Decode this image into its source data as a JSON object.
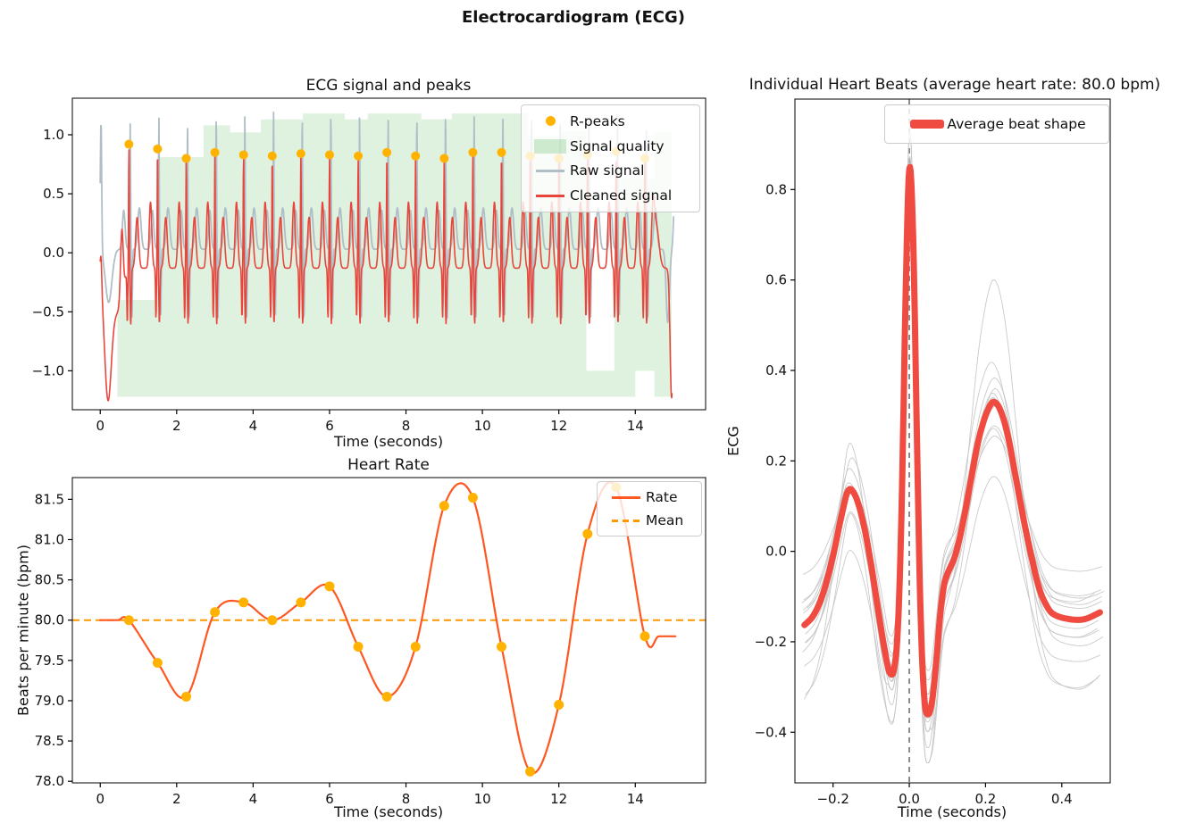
{
  "figure": {
    "title": "Electrocardiogram (ECG)",
    "background": "#ffffff"
  },
  "colors": {
    "raw_signal": "#B0BEC5",
    "cleaned_signal": "#E8463C",
    "r_peaks": "#FFB300",
    "quality_fill": "rgba(76,175,80,0.18)",
    "rate_line": "#FF5722",
    "mean_line": "#FF9800",
    "average_beat": "#F04B41",
    "individual_beat": "#C4C4C4",
    "core_beat": "#9A9A9A",
    "vline": "#808080",
    "spine": "#000000",
    "tick_text": "#111111"
  },
  "chart_data": [
    {
      "id": "ecg_signal",
      "type": "line",
      "title": "ECG signal and peaks",
      "xlabel": "Time (seconds)",
      "ylabel": "",
      "xlim": [
        -0.73,
        15.84
      ],
      "ylim": [
        -1.33,
        1.31
      ],
      "xticks": [
        0,
        2,
        4,
        6,
        8,
        10,
        12,
        14
      ],
      "xtick_labels": [
        "0",
        "2",
        "4",
        "6",
        "8",
        "10",
        "12",
        "14"
      ],
      "yticks": [
        -1.0,
        -0.5,
        0.0,
        0.5,
        1.0
      ],
      "ytick_labels": [
        "−1.0",
        "−0.5",
        "0.0",
        "0.5",
        "1.0"
      ],
      "legend_position": "upper right",
      "legend": [
        {
          "label": "R-peaks",
          "swatch": "dot",
          "color": "#FFB300"
        },
        {
          "label": "Signal quality",
          "swatch": "patch",
          "color": "rgba(76,175,80,0.25)"
        },
        {
          "label": "Raw signal",
          "swatch": "line",
          "color": "#B0BEC5"
        },
        {
          "label": "Cleaned signal",
          "swatch": "line",
          "color": "#E8463C"
        }
      ],
      "r_peaks": {
        "times": [
          0.75,
          1.5,
          2.25,
          3.0,
          3.75,
          4.5,
          5.25,
          6.0,
          6.75,
          7.5,
          8.25,
          9.0,
          9.75,
          10.5,
          11.25,
          12.0,
          12.75,
          13.5,
          14.25
        ],
        "amplitudes": [
          0.92,
          0.88,
          0.8,
          0.85,
          0.83,
          0.82,
          0.84,
          0.83,
          0.82,
          0.85,
          0.82,
          0.8,
          0.85,
          0.85,
          0.82,
          0.8,
          0.83,
          0.86,
          0.8
        ],
        "raw_amplitudes": [
          1.1,
          1.15,
          1.12,
          1.18,
          1.16,
          1.2,
          1.17,
          1.2,
          1.15,
          1.13,
          1.17,
          1.2,
          1.16,
          1.14,
          1.19,
          1.15,
          1.12,
          1.18,
          1.1
        ]
      },
      "quality_segments": [
        {
          "t0": 0.45,
          "t1": 1.5,
          "top": -0.4
        },
        {
          "t0": 1.5,
          "t1": 2.7,
          "top": 0.81
        },
        {
          "t0": 2.7,
          "t1": 3.4,
          "top": 1.08
        },
        {
          "t0": 3.4,
          "t1": 4.2,
          "top": 1.02
        },
        {
          "t0": 4.2,
          "t1": 5.3,
          "top": 1.13
        },
        {
          "t0": 5.3,
          "t1": 6.4,
          "top": 1.18
        },
        {
          "t0": 6.4,
          "t1": 7.0,
          "top": 1.13
        },
        {
          "t0": 7.0,
          "t1": 8.4,
          "top": 1.18
        },
        {
          "t0": 8.4,
          "t1": 9.2,
          "top": 1.13
        },
        {
          "t0": 9.2,
          "t1": 11.2,
          "top": 1.18
        },
        {
          "t0": 11.2,
          "t1": 12.05,
          "top": 0.99
        },
        {
          "t0": 12.05,
          "t1": 12.72,
          "top": 1.03
        },
        {
          "t0": 12.72,
          "t1": 13.45,
          "top": -1.0
        },
        {
          "t0": 13.45,
          "t1": 14.0,
          "top": 0.63
        },
        {
          "t0": 14.0,
          "t1": 14.5,
          "top": 0.63,
          "bot": -1.0
        },
        {
          "t0": 14.5,
          "t1": 14.95,
          "top": 1.02
        }
      ],
      "quality_bottom": -1.22,
      "cleaned_params": {
        "baseline": -0.13,
        "p": {
          "c": -0.185,
          "w": 0.048,
          "a": 0.56
        },
        "q": {
          "c": -0.042,
          "w": 0.016,
          "a": -0.42
        },
        "r_width": 0.013,
        "s": {
          "c": 0.048,
          "w": 0.02,
          "a": -0.47
        },
        "t": {
          "c": 0.215,
          "w": 0.055,
          "a": 0.43
        },
        "artifacts": [
          {
            "c": 0.02,
            "w": 0.03,
            "a": 0.25
          },
          {
            "c": 0.2,
            "w": 0.13,
            "a": -1.07
          },
          {
            "c": 0.45,
            "w": 0.18,
            "a": -0.35
          },
          {
            "c": 14.55,
            "w": 0.1,
            "a": 0.35
          },
          {
            "c": 14.95,
            "w": 0.055,
            "a": -1.1
          }
        ],
        "t_end": 14.96
      },
      "raw_params": {
        "baseline": 0.03,
        "shift": 0.035,
        "p": {
          "c": -0.17,
          "w": 0.05,
          "a": 0.33
        },
        "r_width": 0.012,
        "s": {
          "c": 0.045,
          "w": 0.018,
          "a": -0.58
        },
        "t": {
          "c": 0.24,
          "w": 0.06,
          "a": 0.35
        },
        "artifacts": [
          {
            "c": 0.02,
            "w": 0.025,
            "a": 1.1
          },
          {
            "c": 0.22,
            "w": 0.12,
            "a": -0.45
          },
          {
            "c": 14.85,
            "w": 0.06,
            "a": -0.62
          },
          {
            "c": 15.05,
            "w": 0.05,
            "a": 0.75
          }
        ],
        "t_end": 15.0
      }
    },
    {
      "id": "heart_rate",
      "type": "line",
      "title": "Heart Rate",
      "xlabel": "Time (seconds)",
      "ylabel": "Beats per minute (bpm)",
      "xlim": [
        -0.73,
        15.84
      ],
      "ylim": [
        77.98,
        81.77
      ],
      "xticks": [
        0,
        2,
        4,
        6,
        8,
        10,
        12,
        14
      ],
      "xtick_labels": [
        "0",
        "2",
        "4",
        "6",
        "8",
        "10",
        "12",
        "14"
      ],
      "yticks": [
        78.0,
        78.5,
        79.0,
        79.5,
        80.0,
        80.5,
        81.0,
        81.5
      ],
      "ytick_labels": [
        "78.0",
        "78.5",
        "79.0",
        "79.5",
        "80.0",
        "80.5",
        "81.0",
        "81.5"
      ],
      "legend_position": "upper right",
      "legend": [
        {
          "label": "Rate",
          "swatch": "line",
          "color": "#FF5722"
        },
        {
          "label": "Mean",
          "swatch": "dashedline",
          "color": "#FF9800"
        }
      ],
      "mean_bpm": 80.0,
      "points": {
        "times": [
          0.75,
          1.5,
          2.25,
          3.0,
          3.75,
          4.5,
          5.25,
          6.0,
          6.75,
          7.5,
          8.25,
          9.0,
          9.75,
          10.5,
          11.25,
          12.0,
          12.75,
          13.5,
          14.25
        ],
        "bpm": [
          80.0,
          79.47,
          79.05,
          80.1,
          80.22,
          80.0,
          80.22,
          80.42,
          79.67,
          79.05,
          79.67,
          81.42,
          81.52,
          79.67,
          78.12,
          78.95,
          81.07,
          81.65,
          79.8
        ]
      },
      "curve_pre": [
        [
          0.0,
          80.0
        ],
        [
          0.45,
          80.0
        ]
      ],
      "curve_post": [
        [
          14.62,
          79.8
        ],
        [
          15.05,
          79.8
        ]
      ]
    },
    {
      "id": "individual_beats",
      "type": "line",
      "title": "Individual Heart Beats (average heart rate: 80.0 bpm)",
      "xlabel": "Time (seconds)",
      "ylabel": "ECG",
      "xlim": [
        -0.3,
        0.527
      ],
      "ylim": [
        -0.512,
        1.0
      ],
      "xticks": [
        -0.2,
        0.0,
        0.2,
        0.4
      ],
      "xtick_labels": [
        "−0.2",
        "0.0",
        "0.2",
        "0.4"
      ],
      "yticks": [
        -0.4,
        -0.2,
        0.0,
        0.2,
        0.4,
        0.6,
        0.8
      ],
      "ytick_labels": [
        "−0.4",
        "−0.2",
        "0.0",
        "0.2",
        "0.4",
        "0.6",
        "0.8"
      ],
      "legend_position": "upper center",
      "legend": [
        {
          "label": "Average beat shape",
          "swatch": "thickline",
          "color": "#F04B41"
        }
      ],
      "vline_t": 0.0,
      "average_beat": {
        "t": [
          -0.275,
          -0.25,
          -0.225,
          -0.2,
          -0.18,
          -0.16,
          -0.14,
          -0.12,
          -0.1,
          -0.08,
          -0.06,
          -0.05,
          -0.04,
          -0.03,
          -0.02,
          -0.01,
          0.0,
          0.01,
          0.02,
          0.03,
          0.04,
          0.05,
          0.06,
          0.07,
          0.08,
          0.09,
          0.1,
          0.12,
          0.14,
          0.16,
          0.18,
          0.2,
          0.22,
          0.24,
          0.26,
          0.28,
          0.3,
          0.32,
          0.34,
          0.36,
          0.38,
          0.42,
          0.46,
          0.5
        ],
        "y": [
          -0.163,
          -0.14,
          -0.09,
          -0.01,
          0.07,
          0.135,
          0.12,
          0.06,
          -0.03,
          -0.14,
          -0.24,
          -0.27,
          -0.26,
          -0.17,
          0.1,
          0.55,
          0.845,
          0.7,
          0.25,
          -0.15,
          -0.33,
          -0.36,
          -0.33,
          -0.25,
          -0.15,
          -0.08,
          -0.05,
          -0.01,
          0.06,
          0.15,
          0.24,
          0.3,
          0.33,
          0.31,
          0.25,
          0.16,
          0.07,
          -0.01,
          -0.08,
          -0.12,
          -0.14,
          -0.15,
          -0.15,
          -0.135
        ]
      },
      "individual_variations": [
        {
          "sR": 1.0,
          "sT": 1.0,
          "o": 0.0,
          "tw": 1.0
        },
        {
          "sR": 0.98,
          "sT": 0.93,
          "o": 0.015,
          "tw": 1.01
        },
        {
          "sR": 1.02,
          "sT": 1.06,
          "o": -0.01,
          "tw": 0.99
        },
        {
          "sR": 0.96,
          "sT": 0.88,
          "o": 0.03,
          "tw": 1.02
        },
        {
          "sR": 1.05,
          "sT": 1.12,
          "o": -0.02,
          "tw": 0.985
        },
        {
          "sR": 1.07,
          "sT": 0.78,
          "o": 0.02,
          "tw": 1.005
        },
        {
          "sR": 0.94,
          "sT": 1.18,
          "o": -0.03,
          "tw": 1.015
        },
        {
          "sR": 1.08,
          "sT": 0.96,
          "o": -0.045,
          "tw": 0.995
        },
        {
          "sR": 0.9,
          "sT": 1.04,
          "o": 0.04,
          "tw": 1.008
        },
        {
          "sR": 1.05,
          "sT": 1.88,
          "o": -0.02,
          "tw": 1.0
        },
        {
          "sR": 1.02,
          "sT": 1.33,
          "o": -0.1,
          "tw": 0.99
        },
        {
          "sR": 0.87,
          "sT": 0.62,
          "o": 0.05,
          "tw": 1.01
        },
        {
          "sR": 0.98,
          "sT": 0.85,
          "o": -0.115,
          "tw": 1.0
        },
        {
          "sR": 1.03,
          "sT": 1.1,
          "o": 0.055,
          "tw": 0.97
        }
      ]
    }
  ]
}
